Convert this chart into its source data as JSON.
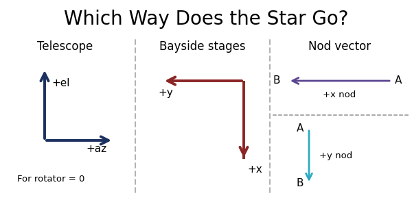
{
  "title": "Which Way Does the Star Go?",
  "title_fontsize": 20,
  "bg_color": "#ffffff",
  "panel_titles": [
    "Telescope",
    "Bayside stages",
    "Nod vector"
  ],
  "panel_title_fontsize": 12,
  "panel1_subtitle": "For rotator = 0",
  "dark_blue": "#1b3060",
  "dark_red": "#8b2525",
  "purple": "#5a4590",
  "cyan": "#2aaabf",
  "divider_color": "#aaaaaa",
  "label_fontsize": 11,
  "small_fontsize": 9.5
}
